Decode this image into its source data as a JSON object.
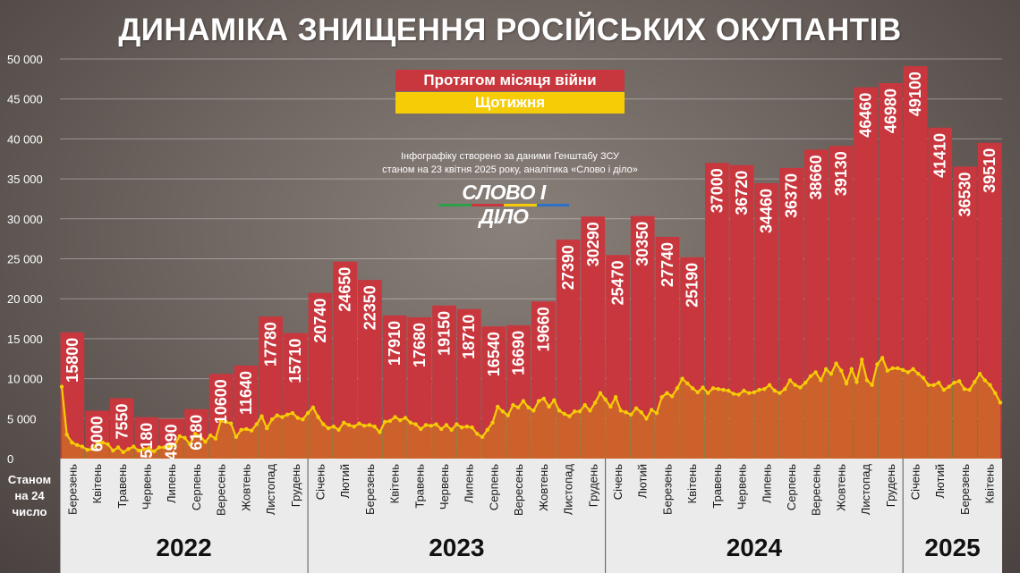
{
  "title": "ДИНАМІКА ЗНИЩЕННЯ РОСІЙСЬКИХ ОКУПАНТІВ",
  "legend": {
    "monthly": "Протягом місяця війни",
    "weekly": "Щотижня"
  },
  "source_line1": "Інфографіку створено за даними Генштабу ЗСУ",
  "source_line2": "станом на 23 квітня 2025 року, аналітика «Слово і діло»",
  "logo": "СЛОВО І ДІЛО",
  "footnote": "Станом на 24 число",
  "colors": {
    "bar": "#c8373d",
    "bar_dark": "#a22a30",
    "line": "#f6cc07",
    "axis_strip": "#ebebeb",
    "text": "#ffffff"
  },
  "chart_data": {
    "type": "bar",
    "ylim": [
      0,
      50000
    ],
    "yticks": [
      "0",
      "5 000",
      "10 000",
      "15 000",
      "20 000",
      "25 000",
      "30 000",
      "35 000",
      "40 000",
      "45 000",
      "50 000"
    ],
    "categories": [
      "Березень",
      "Квітень",
      "Травень",
      "Червень",
      "Липень",
      "Серпень",
      "Вересень",
      "Жовтень",
      "Листопад",
      "Грудень",
      "Січень",
      "Лютий",
      "Березень",
      "Квітень",
      "Травень",
      "Червень",
      "Липень",
      "Серпень",
      "Вересень",
      "Жовтень",
      "Листопад",
      "Грудень",
      "Січень",
      "Лютий",
      "Березень",
      "Квітень",
      "Травень",
      "Червень",
      "Липень",
      "Серпень",
      "Вересень",
      "Жовтень",
      "Листопад",
      "Грудень",
      "Січень",
      "Лютий",
      "Березень",
      "Квітень"
    ],
    "values": [
      15800,
      6000,
      7550,
      5180,
      4990,
      6180,
      10600,
      11640,
      17780,
      15710,
      20740,
      24650,
      22350,
      17910,
      17680,
      19150,
      18710,
      16540,
      16690,
      19660,
      27390,
      30290,
      25470,
      30350,
      27740,
      25190,
      37000,
      36720,
      34460,
      36370,
      38660,
      39130,
      46460,
      46980,
      49100,
      41410,
      36530,
      39510
    ],
    "labels": [
      "15800",
      "6000",
      "7550",
      "5180",
      "4990",
      "6180",
      "10600",
      "11640",
      "17780",
      "15710",
      "20740",
      "24650",
      "22350",
      "17910",
      "17680",
      "19150",
      "18710",
      "16540",
      "16690",
      "19660",
      "27390",
      "30290",
      "25470",
      "30350",
      "27740",
      "25190",
      "37000",
      "36720",
      "34460",
      "36370",
      "38660",
      "39130",
      "46460",
      "46980",
      "49100",
      "41410",
      "36530",
      "39510"
    ],
    "years": [
      {
        "label": "2022",
        "start": 0,
        "end": 9
      },
      {
        "label": "2023",
        "start": 10,
        "end": 21
      },
      {
        "label": "2024",
        "start": 22,
        "end": 33
      },
      {
        "label": "2025",
        "start": 34,
        "end": 37
      }
    ],
    "weekly": [
      9000,
      3000,
      2000,
      1700,
      1500,
      1100,
      1200,
      2000,
      2000,
      1800,
      1000,
      1400,
      800,
      1200,
      1500,
      1000,
      1200,
      1300,
      900,
      1400,
      1400,
      1500,
      1700,
      2800,
      2600,
      1800,
      3100,
      2800,
      2100,
      2900,
      2500,
      4700,
      4600,
      4400,
      2700,
      3600,
      3700,
      3500,
      4300,
      5300,
      3800,
      4900,
      5400,
      5200,
      5500,
      5700,
      5100,
      4900,
      5700,
      6400,
      5200,
      4300,
      3800,
      4000,
      3600,
      4500,
      4200,
      4000,
      4400,
      4100,
      4200,
      4000,
      3300,
      4600,
      4700,
      5200,
      4800,
      5100,
      4500,
      4300,
      3700,
      4200,
      4100,
      4300,
      3700,
      4200,
      3600,
      4300,
      3900,
      4000,
      3900,
      3100,
      2700,
      3600,
      4500,
      6500,
      5900,
      5400,
      6700,
      6400,
      7200,
      6400,
      6000,
      7200,
      7500,
      6500,
      7300,
      6000,
      5600,
      5300,
      5900,
      5900,
      6700,
      6000,
      7000,
      8200,
      7400,
      6500,
      7700,
      6000,
      5800,
      5500,
      6300,
      5800,
      5000,
      6100,
      5700,
      7700,
      8200,
      7800,
      8800,
      10000,
      9400,
      8800,
      8300,
      8900,
      8200,
      8800,
      8700,
      8600,
      8500,
      8100,
      8000,
      8500,
      8200,
      8300,
      8600,
      8700,
      9200,
      8500,
      8200,
      8700,
      9800,
      9200,
      8900,
      9500,
      10300,
      10800,
      9800,
      11200,
      10600,
      11900,
      11000,
      9400,
      11200,
      9600,
      12400,
      9800,
      9200,
      11800,
      12600,
      11000,
      11300,
      11300,
      11100,
      10800,
      11200,
      10600,
      10100,
      9200,
      9200,
      9500,
      8600,
      9000,
      9500,
      9700,
      8700,
      8600,
      9600,
      10600,
      9800,
      9200,
      8200,
      7000
    ],
    "xlabel": "",
    "ylabel": ""
  }
}
